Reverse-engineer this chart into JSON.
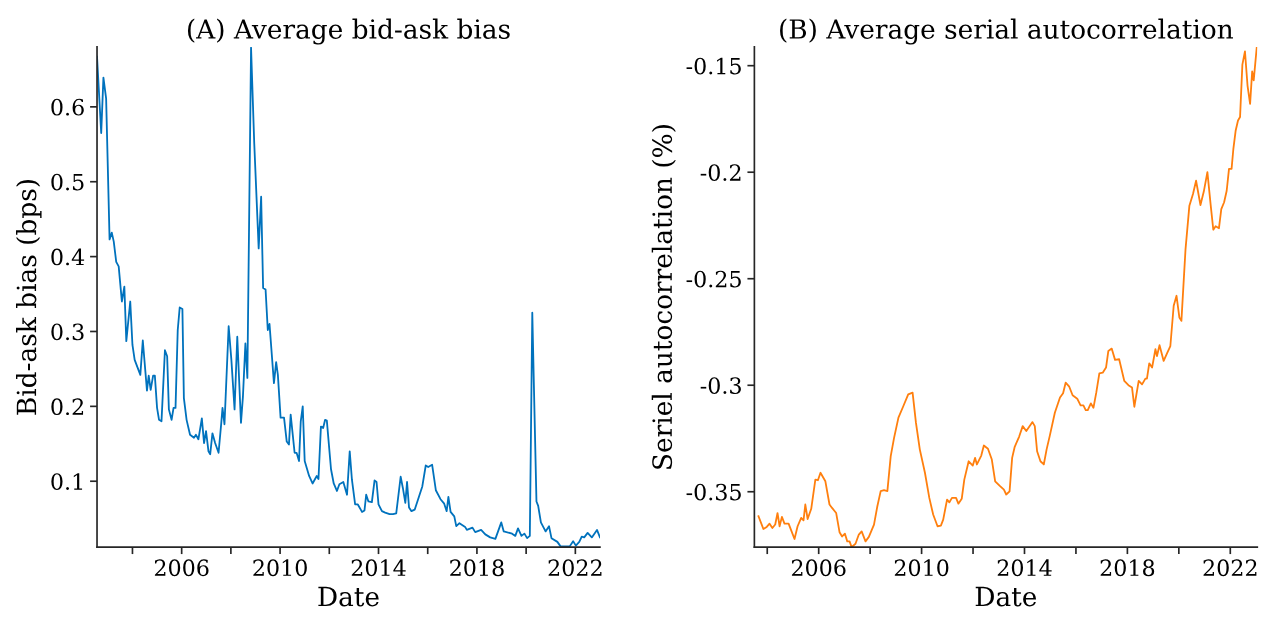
{
  "chart_data": [
    {
      "type": "line",
      "title": "(A) Average bid-ask bias",
      "xlabel": "Date",
      "ylabel": "Bid-ask bias (bps)",
      "xlim": [
        2002.56,
        2023.0
      ],
      "ylim": [
        0.012,
        0.68
      ],
      "xticks": [
        {
          "value": 2004,
          "label": null
        },
        2006,
        {
          "value": 2008,
          "label": null
        },
        2010,
        {
          "value": 2012,
          "label": null
        },
        2014,
        {
          "value": 2016,
          "label": null
        },
        2018,
        {
          "value": 2020,
          "label": null
        },
        2022
      ],
      "yticks": [
        0.1,
        0.2,
        0.3,
        0.4,
        0.5,
        0.6
      ],
      "grid": false,
      "marker": "none",
      "line_style": "solid",
      "series": [
        {
          "color": "#0072bd",
          "x": [
            2002.56,
            2002.73,
            2002.82,
            2002.93,
            2003.07,
            2003.16,
            2003.24,
            2003.34,
            2003.44,
            2003.57,
            2003.67,
            2003.75,
            2003.91,
            2004.0,
            2004.09,
            2004.32,
            2004.42,
            2004.59,
            2004.66,
            2004.74,
            2004.84,
            2004.91,
            2005.0,
            2005.08,
            2005.18,
            2005.32,
            2005.41,
            2005.48,
            2005.59,
            2005.67,
            2005.75,
            2005.84,
            2005.92,
            2006.03,
            2006.09,
            2006.2,
            2006.34,
            2006.5,
            2006.58,
            2006.68,
            2006.82,
            2006.91,
            2006.99,
            2007.09,
            2007.16,
            2007.25,
            2007.36,
            2007.5,
            2007.61,
            2007.66,
            2007.74,
            2007.91,
            2008.02,
            2008.15,
            2008.26,
            2008.41,
            2008.49,
            2008.59,
            2008.67,
            2008.82,
            2008.95,
            2009.13,
            2009.23,
            2009.31,
            2009.41,
            2009.5,
            2009.57,
            2009.75,
            2009.84,
            2009.91,
            2010.02,
            2010.16,
            2010.27,
            2010.36,
            2010.43,
            2010.59,
            2010.67,
            2010.77,
            2010.84,
            2010.92,
            2011.0,
            2011.18,
            2011.32,
            2011.49,
            2011.56,
            2011.66,
            2011.75,
            2011.83,
            2011.9,
            2012.07,
            2012.18,
            2012.31,
            2012.41,
            2012.57,
            2012.72,
            2012.83,
            2012.92,
            2013.05,
            2013.16,
            2013.33,
            2013.43,
            2013.5,
            2013.59,
            2013.73,
            2013.84,
            2013.92,
            2014.0,
            2014.14,
            2014.27,
            2014.45,
            2014.59,
            2014.72,
            2014.9,
            2014.99,
            2015.09,
            2015.16,
            2015.24,
            2015.34,
            2015.47,
            2015.64,
            2015.78,
            2015.92,
            2016.02,
            2016.18,
            2016.33,
            2016.52,
            2016.67,
            2016.77,
            2016.84,
            2016.93,
            2017.08,
            2017.16,
            2017.29,
            2017.52,
            2017.59,
            2017.82,
            2017.93,
            2018.17,
            2018.34,
            2018.54,
            2018.75,
            2018.99,
            2019.09,
            2019.43,
            2019.56,
            2019.67,
            2019.81,
            2019.93,
            2020.04,
            2020.15,
            2020.25,
            2020.42,
            2020.49,
            2020.6,
            2020.79,
            2020.93,
            2021.03,
            2021.27,
            2021.4,
            2021.77,
            2021.91,
            2022.02,
            2022.16,
            2022.26,
            2022.36,
            2022.5,
            2022.67,
            2022.88,
            2023.0
          ],
          "values": [
            0.667,
            0.565,
            0.639,
            0.611,
            0.423,
            0.432,
            0.42,
            0.393,
            0.387,
            0.34,
            0.36,
            0.287,
            0.34,
            0.282,
            0.262,
            0.242,
            0.288,
            0.221,
            0.241,
            0.222,
            0.241,
            0.241,
            0.198,
            0.182,
            0.18,
            0.275,
            0.267,
            0.196,
            0.182,
            0.198,
            0.198,
            0.302,
            0.332,
            0.33,
            0.211,
            0.182,
            0.162,
            0.158,
            0.162,
            0.156,
            0.184,
            0.151,
            0.167,
            0.14,
            0.136,
            0.164,
            0.151,
            0.138,
            0.178,
            0.198,
            0.176,
            0.307,
            0.262,
            0.196,
            0.293,
            0.178,
            0.213,
            0.284,
            0.238,
            0.679,
            0.551,
            0.411,
            0.48,
            0.358,
            0.356,
            0.302,
            0.31,
            0.231,
            0.259,
            0.242,
            0.185,
            0.185,
            0.153,
            0.149,
            0.189,
            0.138,
            0.138,
            0.127,
            0.18,
            0.2,
            0.127,
            0.107,
            0.097,
            0.107,
            0.103,
            0.173,
            0.171,
            0.182,
            0.181,
            0.116,
            0.097,
            0.087,
            0.096,
            0.099,
            0.082,
            0.14,
            0.102,
            0.069,
            0.069,
            0.059,
            0.061,
            0.082,
            0.073,
            0.072,
            0.101,
            0.099,
            0.069,
            0.06,
            0.058,
            0.056,
            0.056,
            0.057,
            0.106,
            0.091,
            0.071,
            0.099,
            0.065,
            0.06,
            0.062,
            0.079,
            0.093,
            0.121,
            0.119,
            0.122,
            0.088,
            0.076,
            0.07,
            0.06,
            0.079,
            0.059,
            0.053,
            0.04,
            0.044,
            0.039,
            0.035,
            0.038,
            0.032,
            0.035,
            0.029,
            0.025,
            0.023,
            0.045,
            0.033,
            0.03,
            0.027,
            0.037,
            0.027,
            0.03,
            0.024,
            0.027,
            0.325,
            0.073,
            0.067,
            0.045,
            0.033,
            0.04,
            0.024,
            0.019,
            0.013,
            0.013,
            0.02,
            0.014,
            0.019,
            0.026,
            0.025,
            0.031,
            0.025,
            0.035,
            0.025
          ]
        }
      ]
    },
    {
      "type": "line",
      "title": "(B) Average serial autocorrelation",
      "xlabel": "Date",
      "ylabel": "Seriel autocorrelation (%)",
      "xlim": [
        2003.5,
        2023.05
      ],
      "ylim": [
        -0.376,
        -0.1412
      ],
      "xticks": [
        {
          "value": 2004,
          "label": null
        },
        2006,
        {
          "value": 2008,
          "label": null
        },
        2010,
        {
          "value": 2012,
          "label": null
        },
        2014,
        {
          "value": 2016,
          "label": null
        },
        2018,
        {
          "value": 2020,
          "label": null
        },
        2022
      ],
      "yticks": [
        -0.35,
        -0.3,
        -0.25,
        -0.2,
        -0.15
      ],
      "grid": false,
      "marker": "none",
      "line_style": "solid",
      "series": [
        {
          "color": "#ff7f0e",
          "x": [
            2003.66,
            2003.85,
            2003.98,
            2004.09,
            2004.2,
            2004.31,
            2004.4,
            2004.48,
            2004.57,
            2004.67,
            2004.83,
            2004.92,
            2005.06,
            2005.18,
            2005.32,
            2005.41,
            2005.48,
            2005.57,
            2005.71,
            2005.87,
            2005.97,
            2006.07,
            2006.26,
            2006.42,
            2006.52,
            2006.68,
            2006.81,
            2006.91,
            2007.02,
            2007.11,
            2007.2,
            2007.28,
            2007.43,
            2007.56,
            2007.67,
            2007.82,
            2007.95,
            2008.15,
            2008.28,
            2008.41,
            2008.54,
            2008.67,
            2008.8,
            2008.93,
            2009.1,
            2009.28,
            2009.48,
            2009.65,
            2009.78,
            2009.93,
            2010.13,
            2010.3,
            2010.45,
            2010.62,
            2010.75,
            2010.84,
            2010.99,
            2011.08,
            2011.18,
            2011.34,
            2011.43,
            2011.56,
            2011.66,
            2011.83,
            2011.99,
            2012.08,
            2012.15,
            2012.32,
            2012.42,
            2012.58,
            2012.73,
            2012.86,
            2013.03,
            2013.2,
            2013.29,
            2013.42,
            2013.52,
            2013.62,
            2013.79,
            2013.93,
            2014.07,
            2014.31,
            2014.4,
            2014.49,
            2014.62,
            2014.75,
            2014.86,
            2014.98,
            2015.18,
            2015.38,
            2015.5,
            2015.6,
            2015.74,
            2015.87,
            2016.05,
            2016.18,
            2016.29,
            2016.38,
            2016.46,
            2016.58,
            2016.68,
            2016.79,
            2016.91,
            2017.04,
            2017.17,
            2017.26,
            2017.39,
            2017.52,
            2017.68,
            2017.88,
            2018.04,
            2018.18,
            2018.27,
            2018.44,
            2018.57,
            2018.7,
            2018.76,
            2018.85,
            2018.96,
            2019.09,
            2019.15,
            2019.25,
            2019.41,
            2019.54,
            2019.67,
            2019.8,
            2019.91,
            2020.02,
            2020.1,
            2020.26,
            2020.41,
            2020.55,
            2020.67,
            2020.84,
            2020.97,
            2021.11,
            2021.24,
            2021.34,
            2021.43,
            2021.56,
            2021.65,
            2021.76,
            2021.86,
            2021.95,
            2022.05,
            2022.12,
            2022.21,
            2022.3,
            2022.38,
            2022.47,
            2022.57,
            2022.67,
            2022.77,
            2022.85,
            2022.91,
            2023.03
          ],
          "values": [
            -0.3615,
            -0.3675,
            -0.3665,
            -0.365,
            -0.367,
            -0.3654,
            -0.36,
            -0.3662,
            -0.3618,
            -0.365,
            -0.365,
            -0.3678,
            -0.3722,
            -0.3662,
            -0.3623,
            -0.3634,
            -0.356,
            -0.3628,
            -0.358,
            -0.3443,
            -0.3446,
            -0.3411,
            -0.3451,
            -0.356,
            -0.3576,
            -0.36,
            -0.369,
            -0.371,
            -0.3697,
            -0.3733,
            -0.3733,
            -0.376,
            -0.3744,
            -0.3701,
            -0.3686,
            -0.3733,
            -0.3712,
            -0.3654,
            -0.3568,
            -0.3497,
            -0.3493,
            -0.3497,
            -0.3333,
            -0.3247,
            -0.3152,
            -0.3101,
            -0.3043,
            -0.3035,
            -0.3176,
            -0.3301,
            -0.3411,
            -0.3529,
            -0.3607,
            -0.3662,
            -0.3659,
            -0.3631,
            -0.3537,
            -0.355,
            -0.3529,
            -0.3529,
            -0.3556,
            -0.3533,
            -0.3443,
            -0.3357,
            -0.3377,
            -0.3341,
            -0.3372,
            -0.333,
            -0.3283,
            -0.3298,
            -0.3349,
            -0.3451,
            -0.3471,
            -0.349,
            -0.3513,
            -0.3498,
            -0.3341,
            -0.3289,
            -0.3242,
            -0.3192,
            -0.3215,
            -0.3173,
            -0.3192,
            -0.331,
            -0.3357,
            -0.3372,
            -0.3301,
            -0.3239,
            -0.3129,
            -0.3058,
            -0.3038,
            -0.2988,
            -0.3007,
            -0.3047,
            -0.3063,
            -0.3095,
            -0.3095,
            -0.3117,
            -0.3117,
            -0.3085,
            -0.3106,
            -0.3035,
            -0.2944,
            -0.2941,
            -0.2917,
            -0.2839,
            -0.2828,
            -0.2881,
            -0.2878,
            -0.298,
            -0.3,
            -0.3011,
            -0.3101,
            -0.298,
            -0.2996,
            -0.2969,
            -0.2969,
            -0.2897,
            -0.2917,
            -0.2831,
            -0.2863,
            -0.2812,
            -0.2886,
            -0.285,
            -0.2816,
            -0.2627,
            -0.258,
            -0.2682,
            -0.2698,
            -0.2361,
            -0.2157,
            -0.2102,
            -0.204,
            -0.2154,
            -0.2091,
            -0.2,
            -0.2157,
            -0.227,
            -0.2254,
            -0.2263,
            -0.2173,
            -0.2141,
            -0.2087,
            -0.1984,
            -0.1984,
            -0.189,
            -0.1804,
            -0.1757,
            -0.1741,
            -0.1495,
            -0.1433,
            -0.1593,
            -0.1679,
            -0.1527,
            -0.1569,
            -0.1412
          ]
        }
      ]
    }
  ]
}
